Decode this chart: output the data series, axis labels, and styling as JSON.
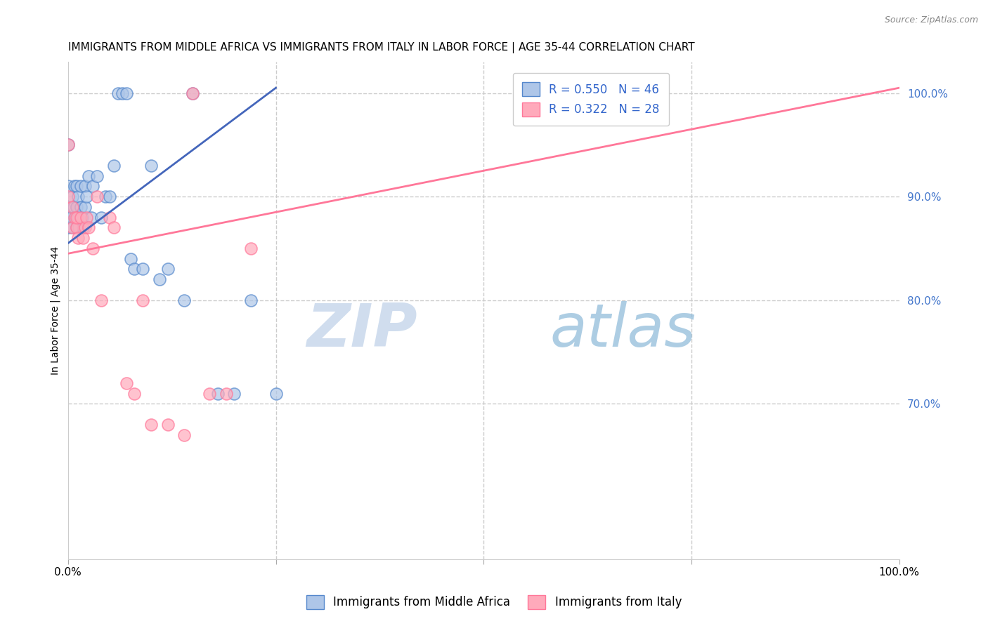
{
  "title": "IMMIGRANTS FROM MIDDLE AFRICA VS IMMIGRANTS FROM ITALY IN LABOR FORCE | AGE 35-44 CORRELATION CHART",
  "source": "Source: ZipAtlas.com",
  "ylabel": "In Labor Force | Age 35-44",
  "xlim": [
    0.0,
    1.0
  ],
  "ylim": [
    0.55,
    1.03
  ],
  "yticks": [
    0.7,
    0.8,
    0.9,
    1.0
  ],
  "ytick_labels": [
    "70.0%",
    "80.0%",
    "90.0%",
    "100.0%"
  ],
  "xticks": [
    0.0,
    0.25,
    0.5,
    0.75,
    1.0
  ],
  "xtick_labels": [
    "0.0%",
    "",
    "",
    "",
    "100.0%"
  ],
  "watermark_zip": "ZIP",
  "watermark_atlas": "atlas",
  "legend_R1": "R = 0.550",
  "legend_N1": "N = 46",
  "legend_R2": "R = 0.322",
  "legend_N2": "N = 28",
  "blue_fill": "#AEC6E8",
  "blue_edge": "#5588CC",
  "pink_fill": "#FFAABB",
  "pink_edge": "#FF7799",
  "line_blue_color": "#4466BB",
  "line_pink_color": "#FF7799",
  "blue_scatter_x": [
    0.0,
    0.0,
    0.0,
    0.0,
    0.003,
    0.005,
    0.005,
    0.007,
    0.008,
    0.009,
    0.01,
    0.01,
    0.01,
    0.012,
    0.012,
    0.013,
    0.015,
    0.015,
    0.017,
    0.018,
    0.02,
    0.02,
    0.022,
    0.025,
    0.028,
    0.03,
    0.035,
    0.04,
    0.045,
    0.05,
    0.055,
    0.06,
    0.065,
    0.07,
    0.075,
    0.08,
    0.09,
    0.1,
    0.11,
    0.12,
    0.14,
    0.15,
    0.18,
    0.2,
    0.22,
    0.25
  ],
  "blue_scatter_y": [
    0.87,
    0.89,
    0.91,
    0.95,
    0.88,
    0.87,
    0.9,
    0.89,
    0.91,
    0.88,
    0.87,
    0.89,
    0.91,
    0.88,
    0.9,
    0.87,
    0.89,
    0.91,
    0.88,
    0.87,
    0.89,
    0.91,
    0.9,
    0.92,
    0.88,
    0.91,
    0.92,
    0.88,
    0.9,
    0.9,
    0.93,
    1.0,
    1.0,
    1.0,
    0.84,
    0.83,
    0.83,
    0.93,
    0.82,
    0.83,
    0.8,
    1.0,
    0.71,
    0.71,
    0.8,
    0.71
  ],
  "pink_scatter_x": [
    0.0,
    0.0,
    0.005,
    0.005,
    0.008,
    0.01,
    0.01,
    0.012,
    0.015,
    0.018,
    0.02,
    0.022,
    0.025,
    0.03,
    0.035,
    0.04,
    0.05,
    0.055,
    0.07,
    0.08,
    0.09,
    0.1,
    0.12,
    0.14,
    0.15,
    0.17,
    0.19,
    0.22
  ],
  "pink_scatter_y": [
    0.9,
    0.95,
    0.87,
    0.89,
    0.88,
    0.87,
    0.88,
    0.86,
    0.88,
    0.86,
    0.87,
    0.88,
    0.87,
    0.85,
    0.9,
    0.8,
    0.88,
    0.87,
    0.72,
    0.71,
    0.8,
    0.68,
    0.68,
    0.67,
    1.0,
    0.71,
    0.71,
    0.85
  ],
  "blue_line_x": [
    0.0,
    0.25
  ],
  "blue_line_y": [
    0.855,
    1.005
  ],
  "pink_line_x": [
    0.0,
    1.0
  ],
  "pink_line_y": [
    0.845,
    1.005
  ],
  "background_color": "#FFFFFF",
  "grid_color": "#CCCCCC",
  "title_fontsize": 11,
  "axis_label_fontsize": 10,
  "tick_fontsize": 11,
  "legend_fontsize": 12
}
